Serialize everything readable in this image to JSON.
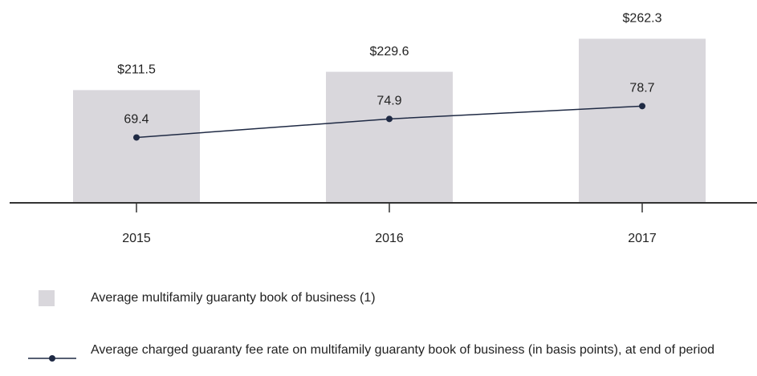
{
  "chart_data": {
    "type": "bar",
    "categories": [
      "2015",
      "2016",
      "2017"
    ],
    "series": [
      {
        "name": "Average multifamily guaranty book of business (1)",
        "type": "bar",
        "color": "#d9d7dc",
        "values": [
          211.5,
          229.6,
          262.3
        ],
        "value_labels": [
          "$211.5",
          "$229.6",
          "$262.3"
        ]
      },
      {
        "name": "Average charged guaranty fee rate on multifamily guaranty book of business (in basis points), at end of period",
        "type": "line",
        "axis": "y2",
        "color": "#1f2a44",
        "values": [
          69.4,
          74.9,
          78.7
        ]
      }
    ],
    "ylim": [
      100,
      280
    ],
    "y2lim": [
      50,
      104
    ]
  }
}
